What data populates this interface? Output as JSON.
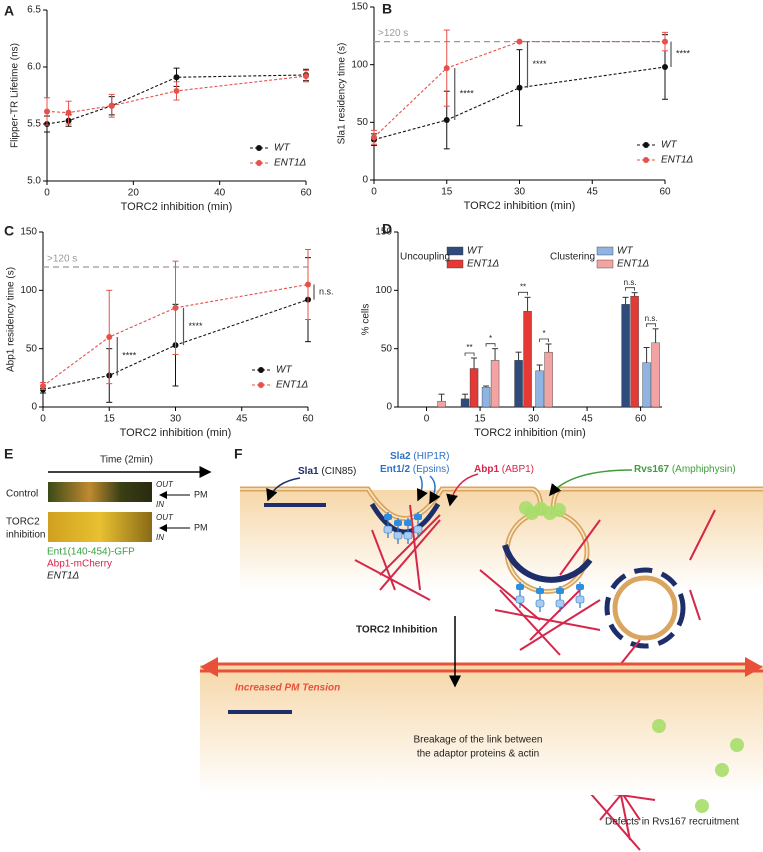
{
  "chart_data": [
    {
      "type": "line",
      "label": "A",
      "xlabel": "TORC2 inhibition (min)",
      "ylabel": "Flipper-TR Lifetime (ns)",
      "x": [
        0,
        5,
        15,
        30,
        60
      ],
      "xlim": [
        0,
        60
      ],
      "xticks": [
        0,
        20,
        40,
        60
      ],
      "ylim": [
        5,
        6.5
      ],
      "yticks": [
        {
          "value": 5,
          "label": "5.0"
        },
        {
          "value": 5.5,
          "label": "5.5"
        },
        {
          "value": 6,
          "label": "6.0"
        },
        {
          "value": 6.5,
          "label": "6.5"
        }
      ],
      "legend": "lower right",
      "series": [
        {
          "name": "WT",
          "color": "#111111",
          "values": [
            5.5,
            5.53,
            5.66,
            5.91,
            5.93
          ],
          "errors": [
            0.07,
            0.05,
            0.08,
            0.08,
            0.05
          ]
        },
        {
          "name": "ENT1Δ",
          "color": "#e8504a",
          "values": [
            5.61,
            5.6,
            5.66,
            5.79,
            5.92
          ],
          "errors": [
            0.12,
            0.1,
            0.1,
            0.08,
            0.05
          ]
        }
      ]
    },
    {
      "type": "line",
      "label": "B",
      "xlabel": "TORC2 inhibition (min)",
      "ylabel": "Sla1 residency time (s)",
      "x": [
        0,
        15,
        30,
        60
      ],
      "xlim": [
        0,
        60
      ],
      "xticks": [
        0,
        15,
        30,
        45,
        60
      ],
      "ylim": [
        0,
        150
      ],
      "yticks": [
        0,
        50,
        100,
        150
      ],
      "reference": {
        "value": 120,
        "label": ">120 s"
      },
      "significance": [
        {
          "x": 15,
          "label": "****"
        },
        {
          "x": 30,
          "label": "****"
        },
        {
          "x": 60,
          "label": "****"
        }
      ],
      "legend": "lower right",
      "series": [
        {
          "name": "WT",
          "color": "#111111",
          "values": [
            35,
            52,
            80,
            98
          ],
          "errors": [
            5,
            25,
            33,
            28
          ]
        },
        {
          "name": "ENT1Δ",
          "color": "#e8504a",
          "values": [
            37,
            97,
            120,
            120
          ],
          "errors": [
            6,
            33,
            0,
            8
          ]
        }
      ]
    },
    {
      "type": "line",
      "label": "C",
      "xlabel": "TORC2 inhibition (min)",
      "ylabel": "Abp1 residency time (s)",
      "x": [
        0,
        15,
        30,
        60
      ],
      "xlim": [
        0,
        60
      ],
      "xticks": [
        0,
        15,
        30,
        45,
        60
      ],
      "ylim": [
        0,
        150
      ],
      "yticks": [
        0,
        50,
        100,
        150
      ],
      "reference": {
        "value": 120,
        "label": ">120 s"
      },
      "significance": [
        {
          "x": 15,
          "label": "****"
        },
        {
          "x": 30,
          "label": "****"
        },
        {
          "x": 60,
          "label": "n.s."
        }
      ],
      "legend": "lower right",
      "series": [
        {
          "name": "WT",
          "color": "#111111",
          "values": [
            15,
            27,
            53,
            92
          ],
          "errors": [
            3,
            23,
            35,
            36
          ]
        },
        {
          "name": "ENT1Δ",
          "color": "#e8504a",
          "values": [
            18,
            60,
            85,
            105
          ],
          "errors": [
            3,
            40,
            40,
            30
          ]
        }
      ]
    },
    {
      "type": "bar",
      "label": "D",
      "xlabel": "TORC2 inhibition (min)",
      "ylabel": "% cells",
      "x": [
        0,
        15,
        30,
        45,
        60
      ],
      "xlim": [
        -8,
        66
      ],
      "xticks": [
        0,
        15,
        30,
        45,
        60
      ],
      "ylim": [
        0,
        150
      ],
      "yticks": [
        0,
        50,
        100,
        150
      ],
      "groups": [
        {
          "name": "Uncoupling",
          "series": [
            {
              "name": "WT",
              "color": "#2f4b7c",
              "values": [
                null,
                7,
                40,
                null,
                88
              ],
              "errors": [
                null,
                4,
                7,
                null,
                6
              ]
            },
            {
              "name": "ENT1Δ",
              "color": "#e53935",
              "values": [
                null,
                33,
                82,
                null,
                95
              ],
              "errors": [
                null,
                9,
                12,
                null,
                3
              ]
            }
          ],
          "significance": [
            {
              "x": 15,
              "label": "**"
            },
            {
              "x": 30,
              "label": "**"
            }
          ]
        },
        {
          "name": "Clustering",
          "series": [
            {
              "name": "WT",
              "color": "#8fb4e3",
              "values": [
                null,
                17,
                31,
                null,
                38
              ],
              "errors": [
                null,
                1,
                5,
                null,
                13
              ]
            },
            {
              "name": "ENT1Δ",
              "color": "#f2a3a3",
              "values": [
                5,
                40,
                47,
                null,
                55
              ],
              "errors": [
                6,
                10,
                7,
                null,
                12
              ]
            }
          ],
          "significance": [
            {
              "x": 15,
              "label": "*"
            },
            {
              "x": 30,
              "label": "*"
            },
            {
              "x": 60,
              "label": "n.s."
            }
          ]
        }
      ],
      "extra_significance": [
        {
          "x": 60,
          "label": "n.s."
        }
      ]
    }
  ],
  "panel_e": {
    "label": "E",
    "time": "Time (2min)",
    "rows": [
      {
        "name": [
          "Control"
        ],
        "out": "OUT",
        "in": "IN",
        "pm": "PM"
      },
      {
        "name": [
          "TORC2",
          "inhibition"
        ],
        "out": "OUT",
        "in": "IN",
        "pm": "PM"
      }
    ],
    "legend": [
      "Ent1(140-454)-GFP",
      "Abp1-mCherry",
      "ENT1Δ"
    ]
  },
  "panel_f": {
    "label": "F",
    "proteins": [
      {
        "name": "Sla1",
        "homolog": "(CIN85)"
      },
      {
        "name": "Sla2",
        "homolog": "(HIP1R)"
      },
      {
        "name": "Ent1/2",
        "homolog": "(Epsins)"
      },
      {
        "name": "Abp1",
        "homolog": "(ABP1)"
      },
      {
        "name": "Rvs167",
        "homolog": "(Amphiphysin)"
      }
    ],
    "step": "TORC2 Inhibition",
    "tension": "Increased PM Tension",
    "notes": [
      [
        "Breakage of the link between",
        "the adaptor proteins & actin"
      ],
      [
        "Defects in Rvs167 recruitment"
      ]
    ]
  }
}
